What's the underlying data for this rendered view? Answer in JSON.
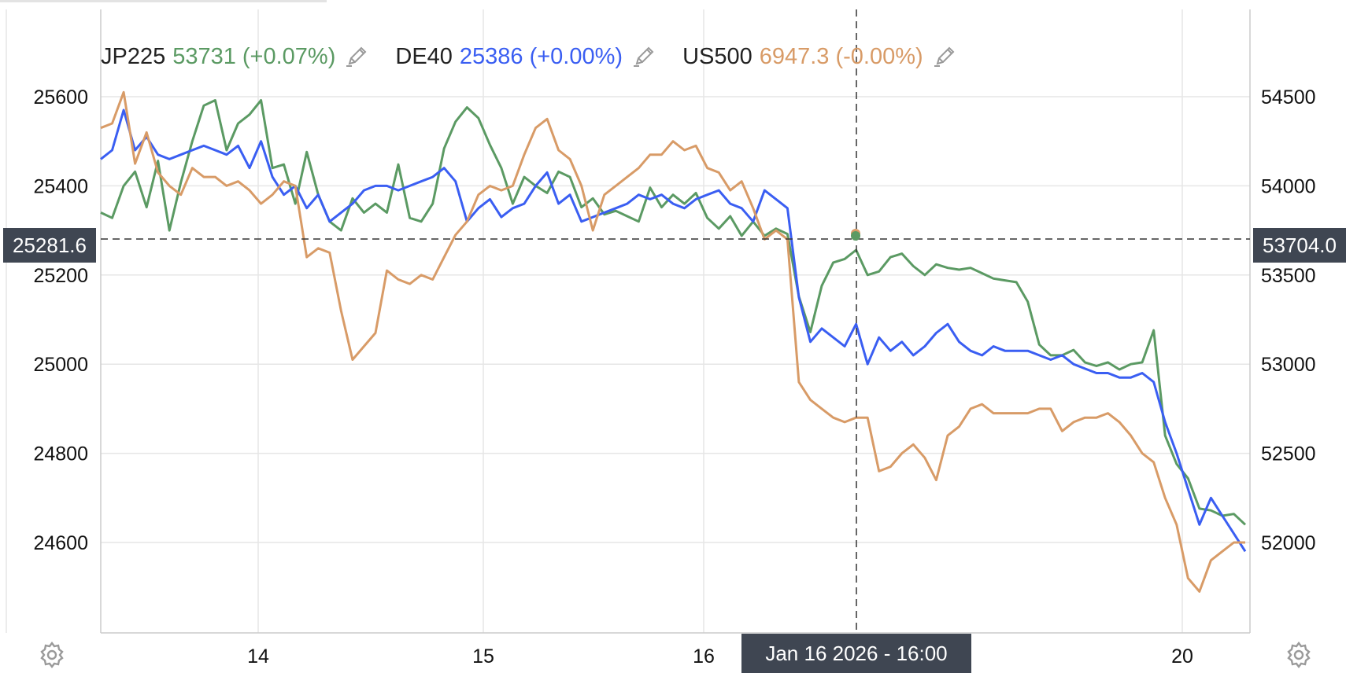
{
  "legend": [
    {
      "symbol": "JP225",
      "value": "53731",
      "change": "(+0.07%)",
      "color": "#5b9a63"
    },
    {
      "symbol": "DE40",
      "value": "25386",
      "change": "(+0.00%)",
      "color": "#3a5ef2"
    },
    {
      "symbol": "US500",
      "value": "6947.3",
      "change": "(-0.00%)",
      "color": "#d89b67"
    }
  ],
  "crosshair": {
    "left_value": "25281.6",
    "right_value": "53704.0",
    "time_label": "Jan 16 2026 - 16:00"
  },
  "icons": {
    "settings": "gear-icon",
    "edit": "pencil-icon"
  },
  "chart_data": {
    "type": "line",
    "x_tick_labels": [
      "14",
      "15",
      "16",
      "20"
    ],
    "x_range": [
      0,
      100
    ],
    "left_axis": {
      "ticks": [
        25600,
        25400,
        25200,
        25000,
        24800,
        24600
      ],
      "range": [
        24400,
        25800
      ]
    },
    "right_axis": {
      "ticks": [
        54500,
        54000,
        53500,
        53000,
        52500,
        52000
      ],
      "range": [
        51500,
        54900
      ]
    },
    "grid": true,
    "legend_position": "top-left",
    "series": [
      {
        "name": "JP225",
        "axis": "right",
        "color": "#5b9a63",
        "x": [
          0,
          1,
          2,
          3,
          4,
          5,
          6,
          7,
          8,
          9,
          10,
          11,
          12,
          13,
          14,
          15,
          16,
          17,
          18,
          19,
          20,
          21,
          22,
          23,
          24,
          25,
          26,
          27,
          28,
          29,
          30,
          31,
          32,
          33,
          34,
          35,
          36,
          37,
          38,
          39,
          40,
          41,
          42,
          43,
          44,
          45,
          46,
          47,
          48,
          49,
          50,
          51,
          52,
          53,
          54,
          55,
          56,
          57,
          58,
          59,
          60,
          61,
          62,
          63,
          64,
          65,
          66,
          67,
          68,
          69,
          70,
          71,
          72,
          73,
          74,
          75,
          76,
          77,
          78,
          79,
          80,
          81,
          82,
          83,
          84,
          85,
          86,
          87,
          88,
          89,
          90,
          91,
          92,
          93,
          94,
          95,
          96,
          97,
          98,
          99,
          100
        ],
        "y": [
          53850,
          53820,
          54000,
          54080,
          53880,
          54140,
          53750,
          54020,
          54250,
          54450,
          54480,
          54200,
          54350,
          54400,
          54480,
          54100,
          54120,
          53900,
          54190,
          53950,
          53800,
          53750,
          53930,
          53850,
          53900,
          53850,
          54120,
          53820,
          53800,
          53900,
          54210,
          54360,
          54440,
          54380,
          54230,
          54100,
          53900,
          54050,
          54000,
          53960,
          54080,
          54050,
          53880,
          53930,
          53840,
          53860,
          53830,
          53800,
          53990,
          53880,
          53950,
          53900,
          53960,
          53820,
          53760,
          53830,
          53720,
          53800,
          53720,
          53760,
          53730,
          53380,
          53180,
          53440,
          53570,
          53590,
          53640,
          53500,
          53520,
          53600,
          53620,
          53550,
          53500,
          53560,
          53540,
          53530,
          53540,
          53510,
          53480,
          53470,
          53460,
          53350,
          53110,
          53050,
          53050,
          53080,
          53010,
          52990,
          53010,
          52970,
          53000,
          53010,
          53190,
          52600,
          52440,
          52360,
          52190,
          52180,
          52150,
          52160,
          52100
        ]
      },
      {
        "name": "DE40",
        "axis": "left",
        "color": "#3a5ef2",
        "x": [
          0,
          1,
          2,
          3,
          4,
          5,
          6,
          7,
          8,
          9,
          10,
          11,
          12,
          13,
          14,
          15,
          16,
          17,
          18,
          19,
          20,
          21,
          22,
          23,
          24,
          25,
          26,
          27,
          28,
          29,
          30,
          31,
          32,
          33,
          34,
          35,
          36,
          37,
          38,
          39,
          40,
          41,
          42,
          43,
          44,
          45,
          46,
          47,
          48,
          49,
          50,
          51,
          52,
          53,
          54,
          55,
          56,
          57,
          58,
          59,
          60,
          61,
          62,
          63,
          64,
          65,
          66,
          67,
          68,
          69,
          70,
          71,
          72,
          73,
          74,
          75,
          76,
          77,
          78,
          79,
          80,
          81,
          82,
          83,
          84,
          85,
          86,
          87,
          88,
          89,
          90,
          91,
          92,
          93,
          94,
          95,
          96,
          97,
          98,
          99,
          100
        ],
        "y": [
          25460,
          25480,
          25570,
          25480,
          25510,
          25470,
          25460,
          25470,
          25480,
          25490,
          25480,
          25470,
          25490,
          25440,
          25500,
          25420,
          25380,
          25400,
          25350,
          25380,
          25320,
          25340,
          25360,
          25390,
          25400,
          25400,
          25390,
          25400,
          25410,
          25420,
          25440,
          25410,
          25320,
          25350,
          25370,
          25330,
          25350,
          25360,
          25400,
          25430,
          25360,
          25380,
          25320,
          25330,
          25340,
          25350,
          25360,
          25380,
          25370,
          25380,
          25360,
          25350,
          25370,
          25380,
          25390,
          25360,
          25350,
          25320,
          25390,
          25370,
          25350,
          25150,
          25050,
          25080,
          25060,
          25040,
          25090,
          25000,
          25060,
          25030,
          25050,
          25020,
          25040,
          25070,
          25090,
          25050,
          25030,
          25020,
          25040,
          25030,
          25030,
          25030,
          25020,
          25010,
          25020,
          25000,
          24990,
          24980,
          24980,
          24970,
          24970,
          24980,
          24960,
          24870,
          24800,
          24720,
          24640,
          24700,
          24660,
          24620,
          24580
        ]
      },
      {
        "name": "US500",
        "axis": "left",
        "color": "#d89b67",
        "x": [
          0,
          1,
          2,
          3,
          4,
          5,
          6,
          7,
          8,
          9,
          10,
          11,
          12,
          13,
          14,
          15,
          16,
          17,
          18,
          19,
          20,
          21,
          22,
          23,
          24,
          25,
          26,
          27,
          28,
          29,
          30,
          31,
          32,
          33,
          34,
          35,
          36,
          37,
          38,
          39,
          40,
          41,
          42,
          43,
          44,
          45,
          46,
          47,
          48,
          49,
          50,
          51,
          52,
          53,
          54,
          55,
          56,
          57,
          58,
          59,
          60,
          61,
          62,
          63,
          64,
          65,
          66,
          67,
          68,
          69,
          70,
          71,
          72,
          73,
          74,
          75,
          76,
          77,
          78,
          79,
          80,
          81,
          82,
          83,
          84,
          85,
          86,
          87,
          88,
          89,
          90,
          91,
          92,
          93,
          94,
          95,
          96,
          97,
          98,
          99,
          100
        ],
        "y": [
          25530,
          25540,
          25610,
          25450,
          25520,
          25430,
          25400,
          25380,
          25440,
          25420,
          25420,
          25400,
          25410,
          25390,
          25360,
          25380,
          25410,
          25400,
          25240,
          25260,
          25250,
          25120,
          25010,
          25040,
          25070,
          25210,
          25190,
          25180,
          25200,
          25190,
          25240,
          25290,
          25320,
          25380,
          25400,
          25390,
          25400,
          25470,
          25530,
          25550,
          25480,
          25460,
          25400,
          25300,
          25380,
          25400,
          25420,
          25440,
          25470,
          25470,
          25500,
          25480,
          25490,
          25440,
          25430,
          25390,
          25410,
          25350,
          25280,
          25300,
          25280,
          24960,
          24920,
          24900,
          24880,
          24870,
          24880,
          24880,
          24760,
          24770,
          24800,
          24820,
          24790,
          24740,
          24840,
          24860,
          24900,
          24910,
          24890,
          24890,
          24890,
          24890,
          24900,
          24900,
          24850,
          24870,
          24880,
          24880,
          24890,
          24870,
          24840,
          24800,
          24780,
          24700,
          24640,
          24520,
          24490,
          24560,
          24580,
          24600,
          24600
        ]
      }
    ]
  }
}
